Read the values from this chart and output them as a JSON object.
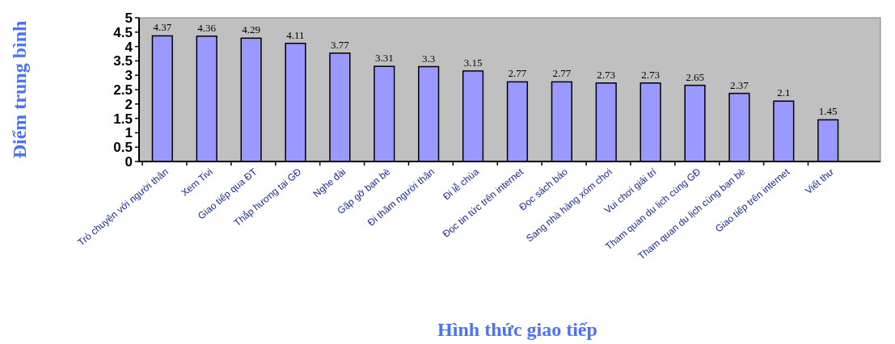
{
  "chart_data": {
    "type": "bar",
    "xlabel": "Hình thức giao tiếp",
    "ylabel": "Điểm trung bình",
    "categories": [
      "Trò chuyện với người thân",
      "Xem Tivi",
      "Giao tiếp qua ĐT",
      "Thắp hương tại GĐ",
      "Nghe đài",
      "Gặp gỡ bạn bè",
      "Đi thăm người thân",
      "Đi lễ chùa",
      "Đọc tin tức trên internet",
      "Đọc sách báo",
      "Sang nhà hàng xóm chơi",
      "Vui chơi giải trí",
      "Tham quan du lịch cùng GĐ",
      "Tham quan du lịch cùng bạn bè",
      "Giao tiếp trên internet",
      "Viết thư"
    ],
    "values": [
      4.37,
      4.36,
      4.29,
      4.11,
      3.77,
      3.31,
      3.3,
      3.15,
      2.77,
      2.77,
      2.73,
      2.73,
      2.65,
      2.37,
      2.1,
      1.45
    ],
    "color": "#9999ff",
    "ylim": [
      0,
      5
    ],
    "yticks": [
      0,
      0.5,
      1,
      1.5,
      2,
      2.5,
      3,
      3.5,
      4,
      4.5,
      5
    ],
    "grid": false,
    "data_labels": true
  }
}
